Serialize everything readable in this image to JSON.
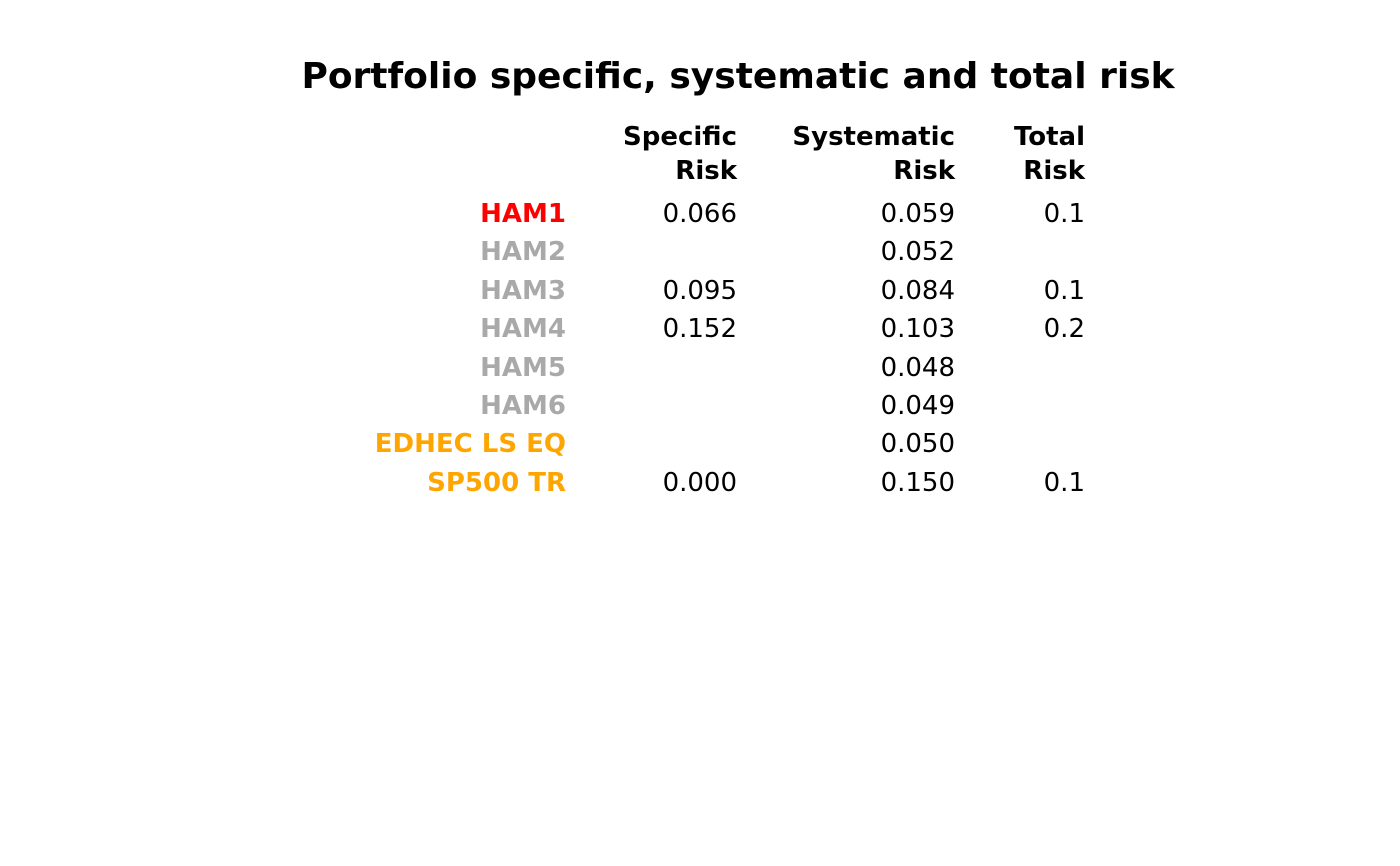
{
  "chart_data": {
    "type": "table",
    "title": "Portfolio specific, systematic and total risk",
    "columns": [
      {
        "line1": "Specific",
        "line2": "Risk"
      },
      {
        "line1": "Systematic",
        "line2": "Risk"
      },
      {
        "line1": "Total",
        "line2": "Risk"
      }
    ],
    "rows": [
      {
        "label": "HAM1",
        "color": "#ff0000",
        "cells": [
          "0.066",
          "0.059",
          "0.1"
        ]
      },
      {
        "label": "HAM2",
        "color": "#a9a9a9",
        "cells": [
          "",
          "0.052",
          ""
        ]
      },
      {
        "label": "HAM3",
        "color": "#a9a9a9",
        "cells": [
          "0.095",
          "0.084",
          "0.1"
        ]
      },
      {
        "label": "HAM4",
        "color": "#a9a9a9",
        "cells": [
          "0.152",
          "0.103",
          "0.2"
        ]
      },
      {
        "label": "HAM5",
        "color": "#a9a9a9",
        "cells": [
          "",
          "0.048",
          ""
        ]
      },
      {
        "label": "HAM6",
        "color": "#a9a9a9",
        "cells": [
          "",
          "0.049",
          ""
        ]
      },
      {
        "label": "EDHEC LS EQ",
        "color": "#ffa500",
        "cells": [
          "",
          "0.050",
          ""
        ]
      },
      {
        "label": "SP500 TR",
        "color": "#ffa500",
        "cells": [
          "0.000",
          "0.150",
          "0.1"
        ]
      }
    ]
  }
}
